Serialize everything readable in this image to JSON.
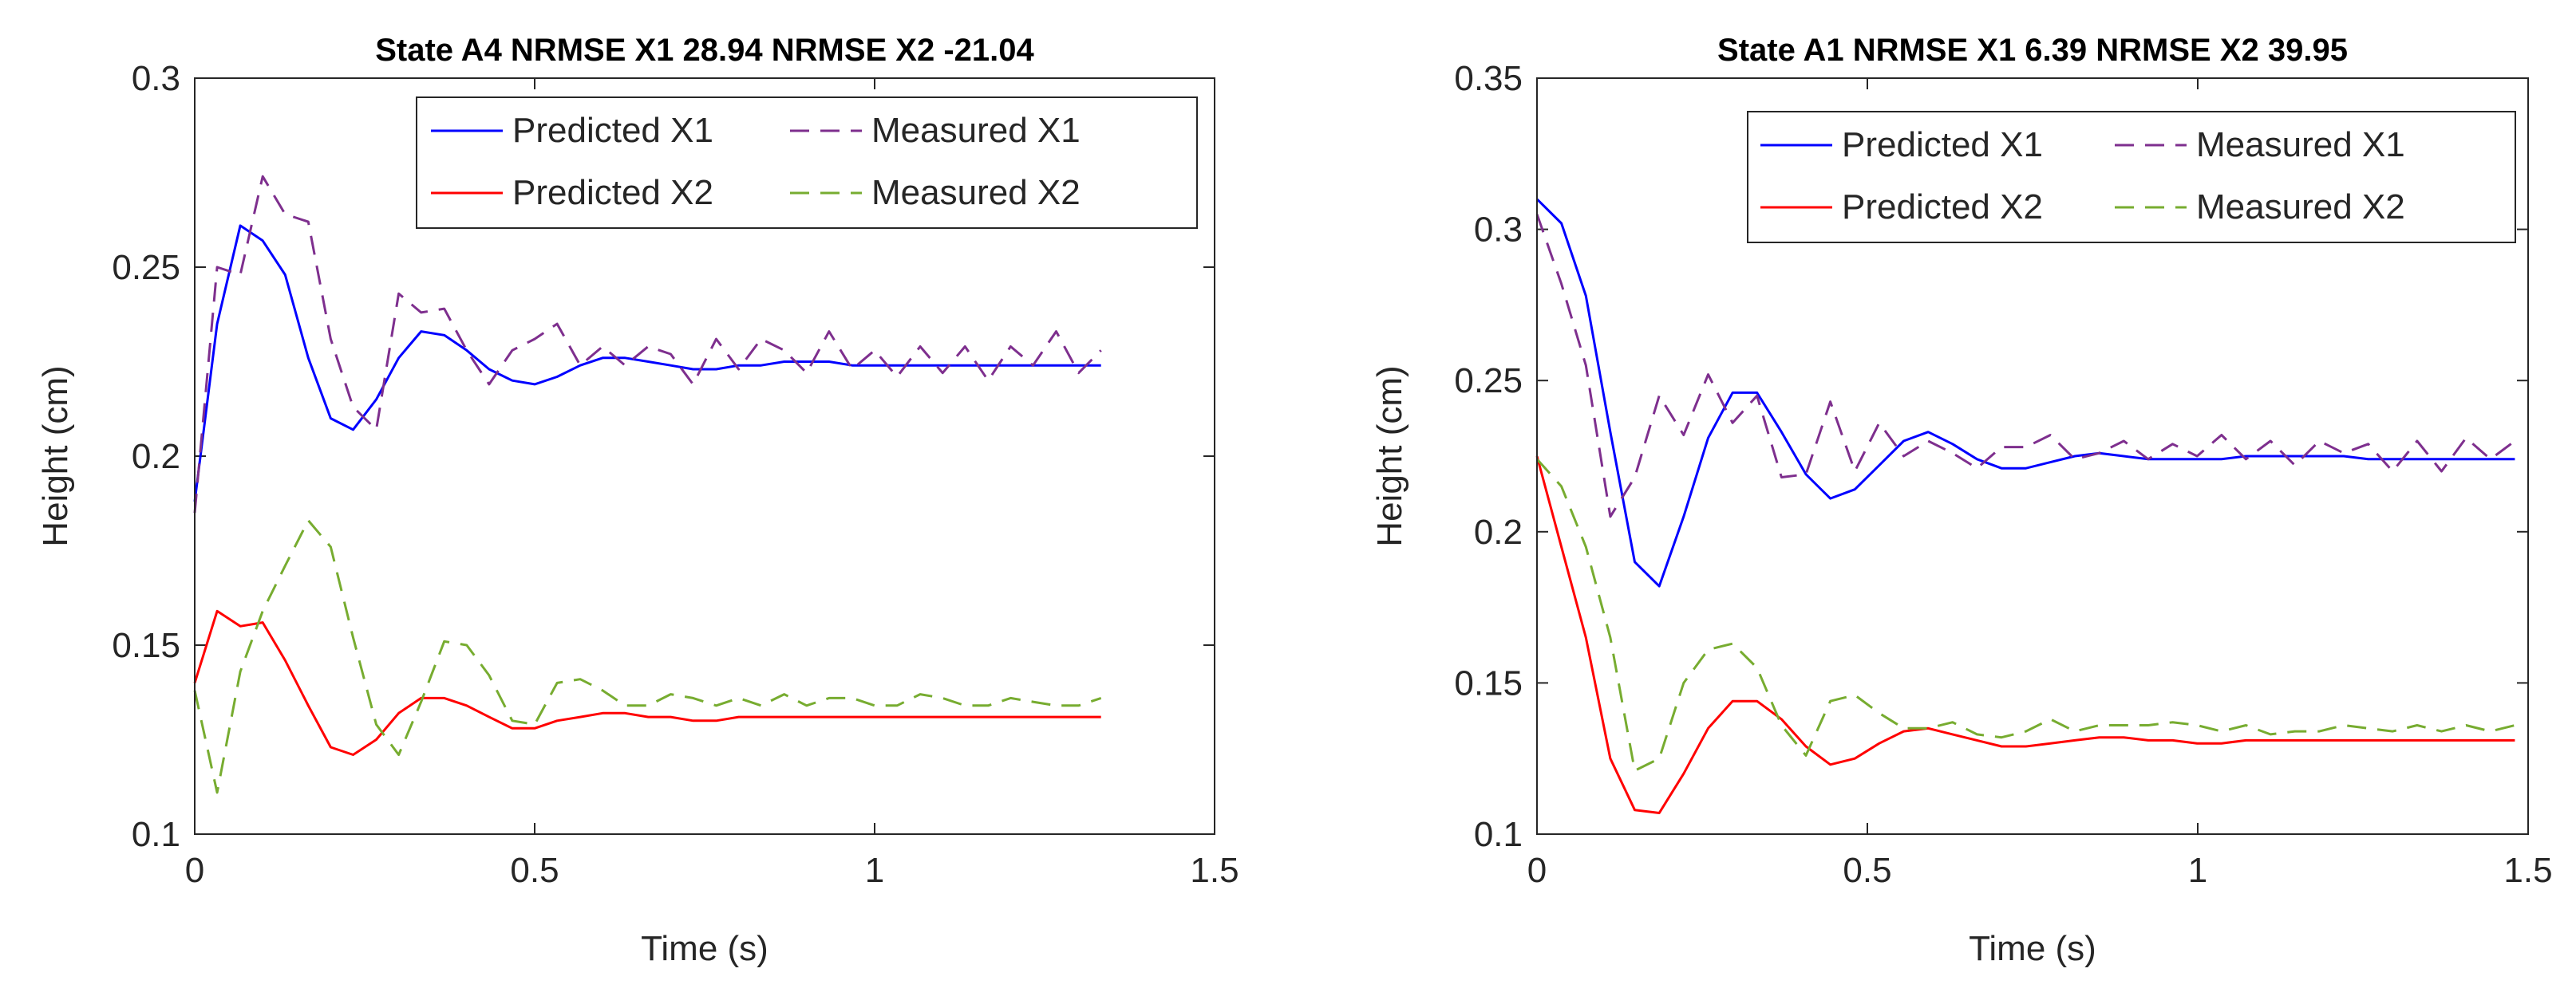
{
  "chart_data": [
    {
      "type": "line",
      "title": "State A4 NRMSE X1 28.94  NRMSE X2 -21.04",
      "xlabel": "Time (s)",
      "ylabel": "Height (cm)",
      "xlim": [
        0,
        1.5
      ],
      "ylim": [
        0.1,
        0.3
      ],
      "xticks": [
        "0",
        "0.5",
        "1",
        "1.5"
      ],
      "yticks": [
        "0.1",
        "0.15",
        "0.2",
        "0.25",
        "0.3"
      ],
      "legend_position": "top-right",
      "series": [
        {
          "name": "Predicted X1",
          "color": "#0000ff",
          "style": "solid",
          "x": [
            0,
            0.033,
            0.067,
            0.1,
            0.133,
            0.167,
            0.2,
            0.233,
            0.267,
            0.3,
            0.333,
            0.367,
            0.4,
            0.433,
            0.467,
            0.5,
            0.533,
            0.567,
            0.6,
            0.633,
            0.667,
            0.7,
            0.733,
            0.767,
            0.8,
            0.833,
            0.867,
            0.9,
            0.933,
            0.967,
            1.0,
            1.033,
            1.067,
            1.1,
            1.133,
            1.167,
            1.2,
            1.233,
            1.267,
            1.3,
            1.333
          ],
          "y": [
            0.188,
            0.235,
            0.261,
            0.257,
            0.248,
            0.226,
            0.21,
            0.207,
            0.215,
            0.226,
            0.233,
            0.232,
            0.228,
            0.223,
            0.22,
            0.219,
            0.221,
            0.224,
            0.226,
            0.226,
            0.225,
            0.224,
            0.223,
            0.223,
            0.224,
            0.224,
            0.225,
            0.225,
            0.225,
            0.224,
            0.224,
            0.224,
            0.224,
            0.224,
            0.224,
            0.224,
            0.224,
            0.224,
            0.224,
            0.224,
            0.224
          ]
        },
        {
          "name": "Measured X1",
          "color": "#7e2f8e",
          "style": "dashed",
          "x": [
            0,
            0.033,
            0.067,
            0.1,
            0.133,
            0.167,
            0.2,
            0.233,
            0.267,
            0.3,
            0.333,
            0.367,
            0.4,
            0.433,
            0.467,
            0.5,
            0.533,
            0.567,
            0.6,
            0.633,
            0.667,
            0.7,
            0.733,
            0.767,
            0.8,
            0.833,
            0.867,
            0.9,
            0.933,
            0.967,
            1.0,
            1.033,
            1.067,
            1.1,
            1.133,
            1.167,
            1.2,
            1.233,
            1.267,
            1.3,
            1.333
          ],
          "y": [
            0.185,
            0.25,
            0.248,
            0.274,
            0.264,
            0.262,
            0.231,
            0.213,
            0.207,
            0.243,
            0.238,
            0.239,
            0.228,
            0.219,
            0.228,
            0.231,
            0.235,
            0.224,
            0.229,
            0.224,
            0.229,
            0.227,
            0.219,
            0.231,
            0.223,
            0.231,
            0.228,
            0.222,
            0.233,
            0.223,
            0.228,
            0.221,
            0.229,
            0.222,
            0.229,
            0.22,
            0.229,
            0.224,
            0.233,
            0.222,
            0.228
          ]
        },
        {
          "name": "Predicted X2",
          "color": "#ff0000",
          "style": "solid",
          "x": [
            0,
            0.033,
            0.067,
            0.1,
            0.133,
            0.167,
            0.2,
            0.233,
            0.267,
            0.3,
            0.333,
            0.367,
            0.4,
            0.433,
            0.467,
            0.5,
            0.533,
            0.567,
            0.6,
            0.633,
            0.667,
            0.7,
            0.733,
            0.767,
            0.8,
            0.833,
            0.867,
            0.9,
            0.933,
            0.967,
            1.0,
            1.033,
            1.067,
            1.1,
            1.133,
            1.167,
            1.2,
            1.233,
            1.267,
            1.3,
            1.333
          ],
          "y": [
            0.14,
            0.159,
            0.155,
            0.156,
            0.146,
            0.134,
            0.123,
            0.121,
            0.125,
            0.132,
            0.136,
            0.136,
            0.134,
            0.131,
            0.128,
            0.128,
            0.13,
            0.131,
            0.132,
            0.132,
            0.131,
            0.131,
            0.13,
            0.13,
            0.131,
            0.131,
            0.131,
            0.131,
            0.131,
            0.131,
            0.131,
            0.131,
            0.131,
            0.131,
            0.131,
            0.131,
            0.131,
            0.131,
            0.131,
            0.131,
            0.131
          ]
        },
        {
          "name": "Measured X2",
          "color": "#77ac30",
          "style": "dashed",
          "x": [
            0,
            0.033,
            0.067,
            0.1,
            0.133,
            0.167,
            0.2,
            0.233,
            0.267,
            0.3,
            0.333,
            0.367,
            0.4,
            0.433,
            0.467,
            0.5,
            0.533,
            0.567,
            0.6,
            0.633,
            0.667,
            0.7,
            0.733,
            0.767,
            0.8,
            0.833,
            0.867,
            0.9,
            0.933,
            0.967,
            1.0,
            1.033,
            1.067,
            1.1,
            1.133,
            1.167,
            1.2,
            1.233,
            1.267,
            1.3,
            1.333
          ],
          "y": [
            0.138,
            0.111,
            0.143,
            0.159,
            0.171,
            0.183,
            0.176,
            0.152,
            0.129,
            0.121,
            0.135,
            0.151,
            0.15,
            0.142,
            0.13,
            0.129,
            0.14,
            0.141,
            0.138,
            0.134,
            0.134,
            0.137,
            0.136,
            0.134,
            0.136,
            0.134,
            0.137,
            0.134,
            0.136,
            0.136,
            0.134,
            0.134,
            0.137,
            0.136,
            0.134,
            0.134,
            0.136,
            0.135,
            0.134,
            0.134,
            0.136
          ]
        }
      ]
    },
    {
      "type": "line",
      "title": "State A1 NRMSE X1 6.39  NRMSE X2 39.95",
      "xlabel": "Time (s)",
      "ylabel": "Height (cm)",
      "xlim": [
        0,
        1.5
      ],
      "ylim": [
        0.1,
        0.35
      ],
      "xticks": [
        "0",
        "0.5",
        "1",
        "1.5"
      ],
      "yticks": [
        "0.1",
        "0.15",
        "0.2",
        "0.25",
        "0.3",
        "0.35"
      ],
      "legend_position": "top-right",
      "series": [
        {
          "name": "Predicted X1",
          "color": "#0000ff",
          "style": "solid",
          "x": [
            0,
            0.037,
            0.074,
            0.111,
            0.148,
            0.185,
            0.222,
            0.259,
            0.296,
            0.333,
            0.37,
            0.407,
            0.444,
            0.481,
            0.518,
            0.555,
            0.592,
            0.629,
            0.666,
            0.703,
            0.74,
            0.777,
            0.814,
            0.851,
            0.888,
            0.925,
            0.962,
            0.999,
            1.036,
            1.073,
            1.11,
            1.147,
            1.184,
            1.221,
            1.258,
            1.295,
            1.332,
            1.369,
            1.406,
            1.443,
            1.48
          ],
          "y": [
            0.31,
            0.302,
            0.278,
            0.233,
            0.19,
            0.182,
            0.205,
            0.231,
            0.246,
            0.246,
            0.233,
            0.219,
            0.211,
            0.214,
            0.222,
            0.23,
            0.233,
            0.229,
            0.224,
            0.221,
            0.221,
            0.223,
            0.225,
            0.226,
            0.225,
            0.224,
            0.224,
            0.224,
            0.224,
            0.225,
            0.225,
            0.225,
            0.225,
            0.225,
            0.224,
            0.224,
            0.224,
            0.224,
            0.224,
            0.224,
            0.224
          ]
        },
        {
          "name": "Measured X1",
          "color": "#7e2f8e",
          "style": "dashed",
          "x": [
            0,
            0.037,
            0.074,
            0.111,
            0.148,
            0.185,
            0.222,
            0.259,
            0.296,
            0.333,
            0.37,
            0.407,
            0.444,
            0.481,
            0.518,
            0.555,
            0.592,
            0.629,
            0.666,
            0.703,
            0.74,
            0.777,
            0.814,
            0.851,
            0.888,
            0.925,
            0.962,
            0.999,
            1.036,
            1.073,
            1.11,
            1.147,
            1.184,
            1.221,
            1.258,
            1.295,
            1.332,
            1.369,
            1.406,
            1.443,
            1.48
          ],
          "y": [
            0.305,
            0.282,
            0.255,
            0.205,
            0.218,
            0.245,
            0.232,
            0.252,
            0.236,
            0.245,
            0.218,
            0.219,
            0.243,
            0.22,
            0.236,
            0.225,
            0.23,
            0.226,
            0.221,
            0.228,
            0.228,
            0.232,
            0.224,
            0.226,
            0.23,
            0.224,
            0.229,
            0.225,
            0.232,
            0.224,
            0.23,
            0.222,
            0.23,
            0.226,
            0.229,
            0.22,
            0.23,
            0.22,
            0.231,
            0.224,
            0.23
          ]
        },
        {
          "name": "Predicted X2",
          "color": "#ff0000",
          "style": "solid",
          "x": [
            0,
            0.037,
            0.074,
            0.111,
            0.148,
            0.185,
            0.222,
            0.259,
            0.296,
            0.333,
            0.37,
            0.407,
            0.444,
            0.481,
            0.518,
            0.555,
            0.592,
            0.629,
            0.666,
            0.703,
            0.74,
            0.777,
            0.814,
            0.851,
            0.888,
            0.925,
            0.962,
            0.999,
            1.036,
            1.073,
            1.11,
            1.147,
            1.184,
            1.221,
            1.258,
            1.295,
            1.332,
            1.369,
            1.406,
            1.443,
            1.48
          ],
          "y": [
            0.225,
            0.195,
            0.165,
            0.125,
            0.108,
            0.107,
            0.12,
            0.135,
            0.144,
            0.144,
            0.138,
            0.129,
            0.123,
            0.125,
            0.13,
            0.134,
            0.135,
            0.133,
            0.131,
            0.129,
            0.129,
            0.13,
            0.131,
            0.132,
            0.132,
            0.131,
            0.131,
            0.13,
            0.13,
            0.131,
            0.131,
            0.131,
            0.131,
            0.131,
            0.131,
            0.131,
            0.131,
            0.131,
            0.131,
            0.131,
            0.131
          ]
        },
        {
          "name": "Measured X2",
          "color": "#77ac30",
          "style": "dashed",
          "x": [
            0,
            0.037,
            0.074,
            0.111,
            0.148,
            0.185,
            0.222,
            0.259,
            0.296,
            0.333,
            0.37,
            0.407,
            0.444,
            0.481,
            0.518,
            0.555,
            0.592,
            0.629,
            0.666,
            0.703,
            0.74,
            0.777,
            0.814,
            0.851,
            0.888,
            0.925,
            0.962,
            0.999,
            1.036,
            1.073,
            1.11,
            1.147,
            1.184,
            1.221,
            1.258,
            1.295,
            1.332,
            1.369,
            1.406,
            1.443,
            1.48
          ],
          "y": [
            0.224,
            0.215,
            0.195,
            0.165,
            0.121,
            0.125,
            0.15,
            0.161,
            0.163,
            0.155,
            0.136,
            0.126,
            0.144,
            0.146,
            0.14,
            0.135,
            0.135,
            0.137,
            0.133,
            0.132,
            0.134,
            0.138,
            0.134,
            0.136,
            0.136,
            0.136,
            0.137,
            0.136,
            0.134,
            0.136,
            0.133,
            0.134,
            0.134,
            0.136,
            0.135,
            0.134,
            0.136,
            0.134,
            0.136,
            0.134,
            0.136
          ]
        }
      ]
    }
  ]
}
